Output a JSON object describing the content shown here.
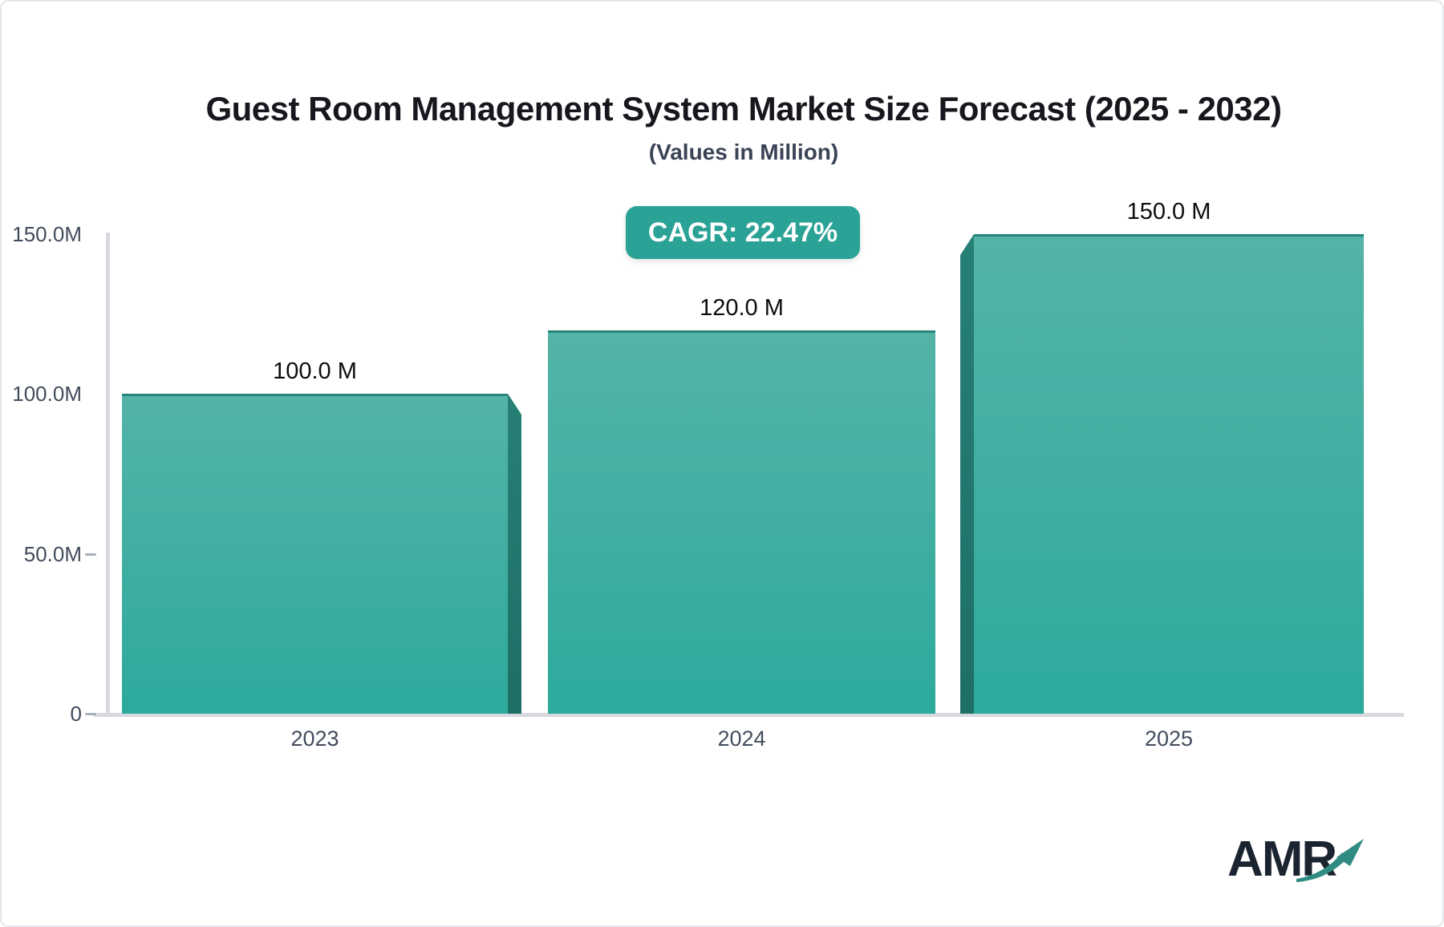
{
  "title": "Guest Room Management System Market Size Forecast (2025 - 2032)",
  "subtitle": "(Values in Million)",
  "badge": {
    "label": "CAGR: 22.47%"
  },
  "chart_data": {
    "type": "bar",
    "categories": [
      "2023",
      "2024",
      "2025"
    ],
    "values": [
      100.0,
      120.0,
      150.0
    ],
    "value_labels": [
      "100.0 M",
      "120.0 M",
      "150.0 M"
    ],
    "y_ticks": [
      {
        "label": "150.0M",
        "value": 150,
        "dash": false
      },
      {
        "label": "100.0M",
        "value": 100,
        "dash": false
      },
      {
        "label": "50.0M",
        "value": 50,
        "dash": true
      },
      {
        "label": "0",
        "value": 0,
        "dash": true
      }
    ],
    "ylim": [
      0,
      150
    ],
    "grid": false,
    "legend": "none",
    "bar_style": "3d-beveled, vertical gradient teal"
  },
  "colors": {
    "bar_top": "#54b3a7",
    "bar_bottom": "#2caa9c",
    "bar_stroke": "#26867c",
    "bar_side_top": "#278076",
    "bar_side_bottom": "#1e6f66",
    "badge_bg": "#2ba296",
    "accent_teal": "#2e8c82",
    "title_text": "#16181d",
    "subtitle_text": "#3a4356",
    "label_text": "#434c5d",
    "value_text": "#0c0d0f",
    "axis_line": "#d6d9de",
    "logo_navy": "#1a2330"
  },
  "logo": {
    "text": "AMR",
    "arrow_icon": "trend-up-arrow"
  }
}
